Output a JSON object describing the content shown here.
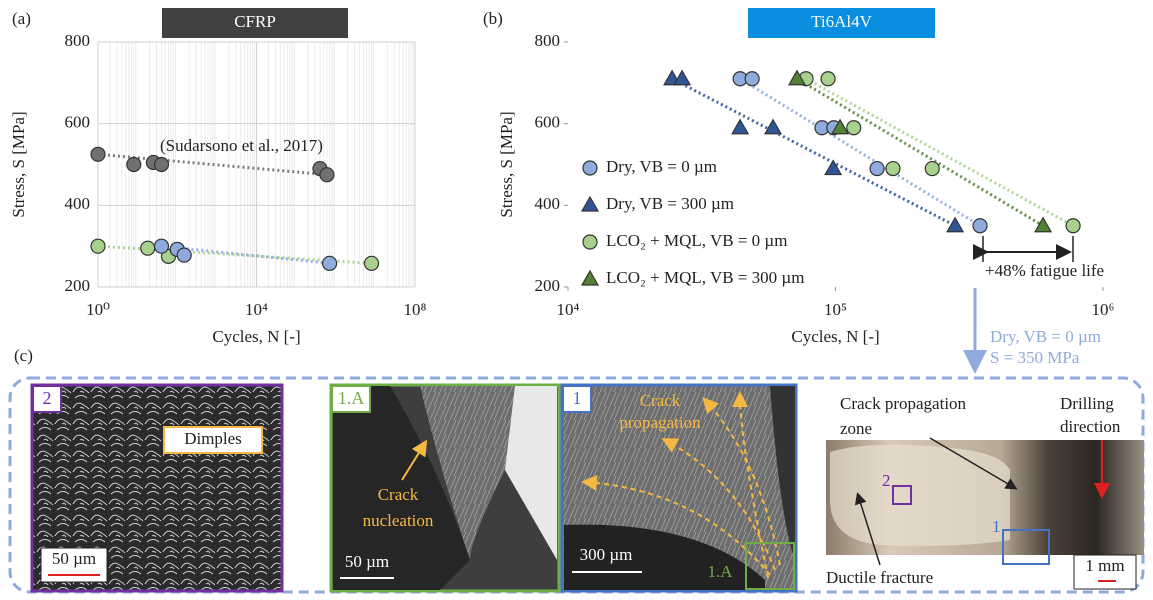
{
  "chart_data": [
    {
      "type": "scatter",
      "panel": "(a)",
      "title": "CFRP",
      "xlabel": "Cycles, N [-]",
      "ylabel": "Stress, S [MPa]",
      "log_x": true,
      "grid": true,
      "xlim": [
        1,
        100000000
      ],
      "xticks": [
        {
          "value": 1,
          "label": "10⁰"
        },
        {
          "value": 10000,
          "label": "10⁴"
        },
        {
          "value": 100000000,
          "label": "10⁸"
        }
      ],
      "ylim": [
        200,
        800
      ],
      "yticks": [
        200,
        400,
        600,
        800
      ],
      "annotation": "(Sudarsono et al., 2017)",
      "series": [
        {
          "color": "#707070",
          "marker": "circle",
          "x": [
            1,
            8,
            25,
            40,
            400000,
            600000
          ],
          "values": [
            525,
            500,
            505,
            500,
            490,
            475
          ]
        },
        {
          "color": "#a9d18e",
          "marker": "circle",
          "x": [
            1,
            18,
            60,
            100,
            8000000
          ],
          "values": [
            300,
            295,
            275,
            292,
            258
          ]
        },
        {
          "color": "#8faadc",
          "marker": "circle",
          "x": [
            40,
            100,
            150,
            700000
          ],
          "values": [
            300,
            292,
            278,
            258
          ]
        }
      ]
    },
    {
      "type": "scatter",
      "panel": "(b)",
      "title": "Ti6Al4V",
      "xlabel": "Cycles, N [-]",
      "ylabel": "Stress, S [MPa]",
      "log_x": true,
      "grid": false,
      "xlim": [
        10000,
        1000000
      ],
      "xticks": [
        {
          "value": 10000,
          "label": "10⁴"
        },
        {
          "value": 100000,
          "label": "10⁵"
        },
        {
          "value": 1000000,
          "label": "10⁶"
        }
      ],
      "ylim": [
        200,
        800
      ],
      "yticks": [
        200,
        400,
        600,
        800
      ],
      "annotation": "+48% fatigue life",
      "callout": [
        "Dry, VB = 0 µm",
        "S = 350 MPa"
      ],
      "series": [
        {
          "name": "Dry, VB = 0 µm",
          "color": "#8faadc",
          "marker": "circle",
          "x": [
            44000,
            48800,
            89000,
            98600,
            143000,
            347000
          ],
          "values": [
            710,
            710,
            590,
            590,
            490,
            350
          ]
        },
        {
          "name": "Dry, VB = 300 µm",
          "color": "#2f5597",
          "marker": "triangle",
          "x": [
            24500,
            26700,
            44000,
            58400,
            98000,
            280000
          ],
          "values": [
            710,
            710,
            590,
            590,
            490,
            350
          ]
        },
        {
          "name": "LCO₂ + MQL, VB = 0 µm",
          "color": "#a9d18e",
          "marker": "circle",
          "x": [
            77600,
            93800,
            117000,
            164000,
            230000,
            773000
          ],
          "values": [
            710,
            710,
            590,
            490,
            490,
            350
          ]
        },
        {
          "name": "LCO₂ + MQL, VB = 300 µm",
          "color": "#548235",
          "marker": "triangle",
          "x": [
            71800,
            104000,
            597000
          ],
          "values": [
            710,
            590,
            350
          ]
        }
      ]
    }
  ],
  "panel_c": {
    "label": "(c)",
    "images": [
      {
        "label": "2",
        "annotation": "Dimples",
        "scale": "50 µm"
      },
      {
        "label": "1.A",
        "annotation": [
          "Crack",
          "nucleation"
        ],
        "scale": "50 µm"
      },
      {
        "label": "1",
        "annotation": [
          "Crack",
          "propagation"
        ],
        "scale": "300 µm",
        "inset_label": "1.A"
      },
      {
        "annotations": [
          [
            "Crack propagation",
            "zone"
          ],
          [
            "Drilling",
            "direction"
          ],
          "Ductile fracture"
        ],
        "region_labels": [
          "2",
          "1"
        ],
        "scale": "1 mm"
      }
    ]
  }
}
